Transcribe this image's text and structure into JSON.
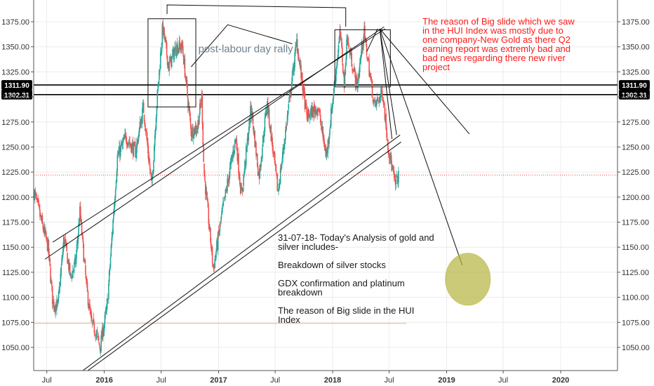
{
  "chart_data": {
    "type": "candlestick",
    "title": "",
    "xlabel": "",
    "ylabel": "",
    "ylim": [
      1030,
      1390
    ],
    "y_ticks": [
      1050,
      1075,
      1100,
      1125,
      1150,
      1175,
      1200,
      1225,
      1250,
      1275,
      1300,
      1325,
      1350,
      1375
    ],
    "y_tick_labels": [
      "1050.00",
      "1075.00",
      "1100.00",
      "1125.00",
      "1150.00",
      "1175.00",
      "1200.00",
      "1225.00",
      "1250.00",
      "1275.00",
      "1300.00",
      "1325.00",
      "1350.00",
      "1375.00"
    ],
    "x_tick_labels": [
      "Jul",
      "2016",
      "Jul",
      "2017",
      "Jul",
      "2018",
      "Jul",
      "2019",
      "Jul",
      "2020"
    ],
    "x_ticks": [
      "2015-07-01",
      "2016-01-01",
      "2016-07-01",
      "2017-01-01",
      "2017-07-01",
      "2018-01-01",
      "2018-07-01",
      "2019-01-01",
      "2019-07-01",
      "2020-01-01"
    ],
    "xlim": [
      "2015-05-20",
      "2020-07-01"
    ],
    "grid": true,
    "price_path": [
      [
        "2015-05-22",
        1205
      ],
      [
        "2015-06-10",
        1180
      ],
      [
        "2015-07-05",
        1150
      ],
      [
        "2015-07-20",
        1095
      ],
      [
        "2015-08-05",
        1090
      ],
      [
        "2015-08-25",
        1160
      ],
      [
        "2015-09-15",
        1120
      ],
      [
        "2015-10-01",
        1135
      ],
      [
        "2015-10-15",
        1185
      ],
      [
        "2015-11-05",
        1110
      ],
      [
        "2015-11-20",
        1075
      ],
      [
        "2015-12-05",
        1065
      ],
      [
        "2015-12-18",
        1050
      ],
      [
        "2016-01-10",
        1090
      ],
      [
        "2016-02-12",
        1240
      ],
      [
        "2016-03-10",
        1260
      ],
      [
        "2016-04-10",
        1245
      ],
      [
        "2016-05-05",
        1290
      ],
      [
        "2016-06-01",
        1210
      ],
      [
        "2016-06-15",
        1285
      ],
      [
        "2016-07-06",
        1370
      ],
      [
        "2016-07-25",
        1330
      ],
      [
        "2016-08-18",
        1350
      ],
      [
        "2016-09-07",
        1350
      ],
      [
        "2016-10-05",
        1265
      ],
      [
        "2016-10-25",
        1270
      ],
      [
        "2016-11-08",
        1300
      ],
      [
        "2016-11-15",
        1225
      ],
      [
        "2016-12-15",
        1128
      ],
      [
        "2017-01-10",
        1180
      ],
      [
        "2017-02-25",
        1260
      ],
      [
        "2017-03-15",
        1200
      ],
      [
        "2017-04-15",
        1290
      ],
      [
        "2017-05-10",
        1220
      ],
      [
        "2017-06-05",
        1295
      ],
      [
        "2017-07-10",
        1205
      ],
      [
        "2017-09-08",
        1355
      ],
      [
        "2017-10-10",
        1280
      ],
      [
        "2017-11-15",
        1290
      ],
      [
        "2017-12-12",
        1240
      ],
      [
        "2018-01-25",
        1365
      ],
      [
        "2018-02-08",
        1310
      ],
      [
        "2018-02-15",
        1360
      ],
      [
        "2018-03-20",
        1310
      ],
      [
        "2018-04-11",
        1365
      ],
      [
        "2018-05-15",
        1290
      ],
      [
        "2018-06-10",
        1305
      ],
      [
        "2018-06-28",
        1250
      ],
      [
        "2018-07-20",
        1212
      ],
      [
        "2018-07-31",
        1222
      ]
    ],
    "horizontal_levels": [
      {
        "value": 1311.9,
        "label": "1311.90"
      },
      {
        "value": 1302.31,
        "label": "1302.31"
      },
      {
        "value": 1222.0,
        "label": "",
        "style": "dotted-red"
      },
      {
        "value": 1074.0,
        "label": "",
        "style": "orange"
      }
    ],
    "annotations": [
      {
        "text": "post-labour day rally",
        "color": "#6e8291"
      },
      {
        "lines": [
          "The reason of Big slide which we saw",
          "in the HUI Index was mostly due to",
          "one company-New Gold as there Q2",
          "earning report was extremly bad and",
          "bad news regarding there new river",
          "project"
        ],
        "color": "#ff1a1a"
      },
      {
        "lines": [
          "31-07-18- Today's Analysis of gold and",
          "silver includes-",
          "",
          "Breakdown of silver stocks",
          "",
          "GDX confirmation and platinum",
          "breakdown",
          "",
          "The reason of Big slide in the HUI",
          "Index"
        ],
        "color": "#1a1a1a"
      }
    ],
    "colors": {
      "up": "#26a69a",
      "down": "#ef5350",
      "target_circle": "#b5b33f",
      "level_line": "#000000"
    }
  }
}
